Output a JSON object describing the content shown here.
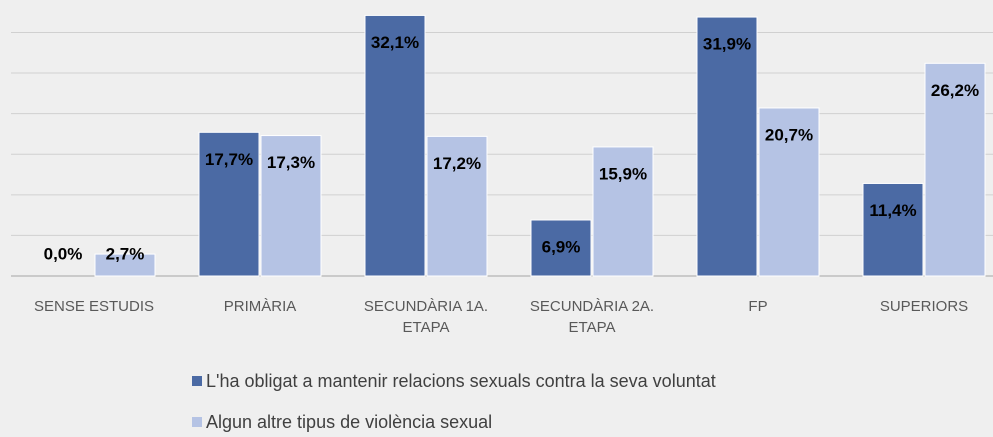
{
  "chart_data": {
    "type": "bar",
    "categories": [
      "SENSE ESTUDIS",
      "PRIMÀRIA",
      "SECUNDÀRIA 1A. ETAPA",
      "SECUNDÀRIA 2A. ETAPA",
      "FP",
      "SUPERIORS"
    ],
    "series": [
      {
        "name": "L'ha obligat a mantenir relacions sexuals contra la seva voluntat",
        "color": "#4b6aa4",
        "values": [
          0.0,
          17.7,
          32.1,
          6.9,
          31.9,
          11.4
        ],
        "value_labels": [
          "0,0%",
          "17,7%",
          "32,1%",
          "6,9%",
          "31,9%",
          "11,4%"
        ]
      },
      {
        "name": "Algun altre tipus de violència sexual",
        "color": "#b5c3e4",
        "values": [
          2.7,
          17.3,
          17.2,
          15.9,
          20.7,
          26.2
        ],
        "value_labels": [
          "2,7%",
          "17,3%",
          "17,2%",
          "15,9%",
          "20,7%",
          "26,2%"
        ]
      }
    ],
    "ylim": [
      0,
      34
    ],
    "yticks": [
      0,
      5,
      10,
      15,
      20,
      25,
      30
    ],
    "grid": true,
    "legend": "bottom"
  }
}
